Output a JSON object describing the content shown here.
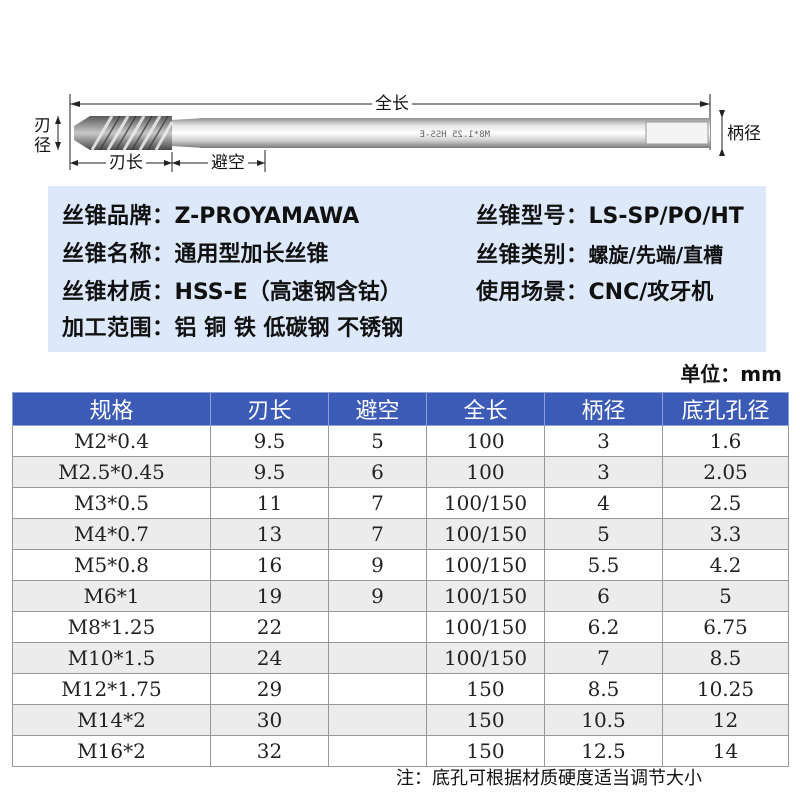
{
  "drawing": {
    "total_length": "全长",
    "cut_length": "刃长",
    "relief": "避空",
    "shank_dia": "柄径",
    "blade_dia_1": "刃",
    "blade_dia_2": "径",
    "shank_marking": "M8*1.25 HSS-E"
  },
  "specs": {
    "brand_label": "丝锥品牌：",
    "brand_value": "Z-PROYAMAWA",
    "model_label": "丝锥型号：",
    "model_value": "LS-SP/PO/HT",
    "name_label": "丝锥名称：",
    "name_value": "通用型加长丝锥",
    "type_label": "丝锥类别：",
    "type_value": "螺旋/先端/直槽",
    "material_label": "丝锥材质：",
    "material_value": "HSS-E（高速钢含钴）",
    "usage_label": "使用场景：",
    "usage_value": "CNC/攻牙机",
    "range_label": "加工范围：",
    "range_value": "铝 铜 铁 低碳钢 不锈钢"
  },
  "unit": "单位：mm",
  "table": {
    "headers": [
      "规格",
      "刃长",
      "避空",
      "全长",
      "柄径",
      "底孔孔径"
    ],
    "rows": [
      [
        "M2*0.4",
        "9.5",
        "5",
        "100",
        "3",
        "1.6"
      ],
      [
        "M2.5*0.45",
        "9.5",
        "6",
        "100",
        "3",
        "2.05"
      ],
      [
        "M3*0.5",
        "11",
        "7",
        "100/150",
        "4",
        "2.5"
      ],
      [
        "M4*0.7",
        "13",
        "7",
        "100/150",
        "5",
        "3.3"
      ],
      [
        "M5*0.8",
        "16",
        "9",
        "100/150",
        "5.5",
        "4.2"
      ],
      [
        "M6*1",
        "19",
        "9",
        "100/150",
        "6",
        "5"
      ],
      [
        "M8*1.25",
        "22",
        "",
        "100/150",
        "6.2",
        "6.75"
      ],
      [
        "M10*1.5",
        "24",
        "",
        "100/150",
        "7",
        "8.5"
      ],
      [
        "M12*1.75",
        "29",
        "",
        "150",
        "8.5",
        "10.25"
      ],
      [
        "M14*2",
        "30",
        "",
        "150",
        "10.5",
        "12"
      ],
      [
        "M16*2",
        "32",
        "",
        "150",
        "12.5",
        "14"
      ]
    ]
  },
  "note": "注：底孔可根据材质硬度适当调节大小",
  "colors": {
    "header_bg": "#3c5bb7",
    "spec_box_bg": "#dde9fa",
    "row_alt_bg": "#ececec"
  }
}
